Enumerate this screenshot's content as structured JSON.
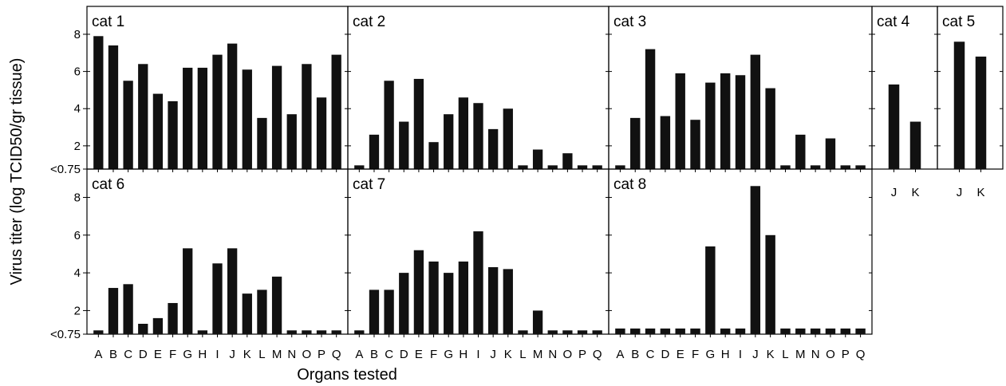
{
  "chart_data": {
    "type": "bar",
    "ylabel": "Virus titer (log TCID50/gr tissue)",
    "xlabel": "Organs tested",
    "ylim": [
      0.75,
      9.5
    ],
    "yticks": [
      {
        "value": 0.75,
        "label": "<0.75"
      },
      {
        "value": 2,
        "label": "2"
      },
      {
        "value": 4,
        "label": "4"
      },
      {
        "value": 6,
        "label": "6"
      },
      {
        "value": 8,
        "label": "8"
      }
    ],
    "organs": [
      "A",
      "B",
      "C",
      "D",
      "E",
      "F",
      "G",
      "H",
      "I",
      "J",
      "K",
      "L",
      "M",
      "N",
      "O",
      "P",
      "Q"
    ],
    "panels": [
      {
        "id": "cat1",
        "label": "cat 1",
        "categories": [
          "A",
          "B",
          "C",
          "D",
          "E",
          "F",
          "G",
          "H",
          "I",
          "J",
          "K",
          "L",
          "M",
          "N",
          "O",
          "P",
          "Q"
        ],
        "values": [
          7.9,
          7.4,
          5.5,
          6.4,
          4.8,
          4.4,
          6.2,
          6.2,
          6.9,
          7.5,
          6.1,
          3.5,
          6.3,
          3.7,
          6.4,
          4.6,
          6.9
        ]
      },
      {
        "id": "cat2",
        "label": "cat 2",
        "categories": [
          "A",
          "B",
          "C",
          "D",
          "E",
          "F",
          "G",
          "H",
          "I",
          "J",
          "K",
          "L",
          "M",
          "N",
          "O",
          "P",
          "Q"
        ],
        "values": [
          0.95,
          2.6,
          5.5,
          3.3,
          5.6,
          2.2,
          3.7,
          4.6,
          4.3,
          2.9,
          4.0,
          0.95,
          1.8,
          0.95,
          1.6,
          0.95,
          0.95
        ]
      },
      {
        "id": "cat3",
        "label": "cat 3",
        "categories": [
          "A",
          "B",
          "C",
          "D",
          "E",
          "F",
          "G",
          "H",
          "I",
          "J",
          "K",
          "L",
          "M",
          "N",
          "O",
          "P",
          "Q"
        ],
        "values": [
          0.95,
          3.5,
          7.2,
          3.6,
          5.9,
          3.4,
          5.4,
          5.9,
          5.8,
          6.9,
          5.1,
          0.95,
          2.6,
          0.95,
          2.4,
          0.95,
          0.95
        ]
      },
      {
        "id": "cat4",
        "label": "cat 4",
        "categories": [
          "J",
          "K"
        ],
        "values": [
          5.3,
          3.3
        ]
      },
      {
        "id": "cat5",
        "label": "cat 5",
        "categories": [
          "J",
          "K"
        ],
        "values": [
          7.6,
          6.8
        ]
      },
      {
        "id": "cat6",
        "label": "cat 6",
        "categories": [
          "A",
          "B",
          "C",
          "D",
          "E",
          "F",
          "G",
          "H",
          "I",
          "J",
          "K",
          "L",
          "M",
          "N",
          "O",
          "P",
          "Q"
        ],
        "values": [
          0.95,
          3.2,
          3.4,
          1.3,
          1.6,
          2.4,
          5.3,
          0.95,
          4.5,
          5.3,
          2.9,
          3.1,
          3.8,
          0.95,
          0.95,
          0.95,
          0.95
        ]
      },
      {
        "id": "cat7",
        "label": "cat 7",
        "categories": [
          "A",
          "B",
          "C",
          "D",
          "E",
          "F",
          "G",
          "H",
          "I",
          "J",
          "K",
          "L",
          "M",
          "N",
          "O",
          "P",
          "Q"
        ],
        "values": [
          0.95,
          3.1,
          3.1,
          4.0,
          5.2,
          4.6,
          4.0,
          4.6,
          6.2,
          4.3,
          4.2,
          0.95,
          2.0,
          0.95,
          0.95,
          0.95,
          0.95
        ]
      },
      {
        "id": "cat8",
        "label": "cat 8",
        "categories": [
          "A",
          "B",
          "C",
          "D",
          "E",
          "F",
          "G",
          "H",
          "I",
          "J",
          "K",
          "L",
          "M",
          "N",
          "O",
          "P",
          "Q"
        ],
        "values": [
          1.05,
          1.05,
          1.05,
          1.05,
          1.05,
          1.05,
          5.4,
          1.05,
          1.05,
          8.6,
          6.0,
          1.05,
          1.05,
          1.05,
          1.05,
          1.05,
          1.05
        ]
      }
    ]
  }
}
